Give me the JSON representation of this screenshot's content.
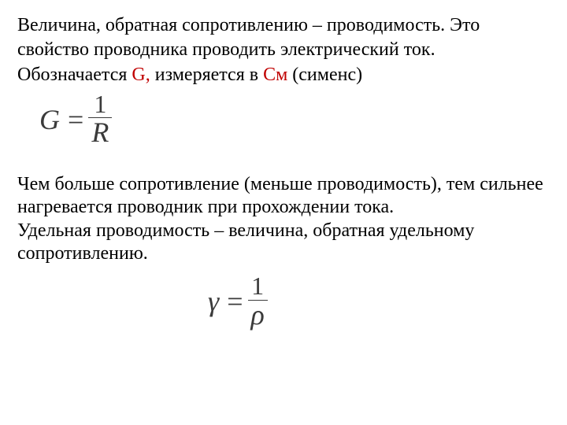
{
  "text": {
    "p1_line1": "Величина, обратная сопротивлению – проводимость. Это",
    "p1_line2": "свойство проводника проводить электрический ток.",
    "p1_line3_prefix": "Обозначается ",
    "p1_line3_g": "G,",
    "p1_line3_mid": " измеряется в ",
    "p1_line3_cm": "См",
    "p1_line3_suffix": " (сименс)",
    "p2_line1": "Чем больше сопротивление (меньше проводимость), тем сильнее",
    "p2_line2": "нагревается проводник при прохождении тока.",
    "p2_line3": "Удельная проводимость – величина, обратная удельному",
    "p2_line4": "сопротивлению."
  },
  "formula1": {
    "lhs": "G",
    "eq": "=",
    "num": "1",
    "den": "R"
  },
  "formula2": {
    "lhs": "γ",
    "eq": "=",
    "num": "1",
    "den": "ρ"
  },
  "colors": {
    "text": "#000000",
    "highlight": "#c00000",
    "formula": "#3b3b3b",
    "background": "#ffffff"
  }
}
